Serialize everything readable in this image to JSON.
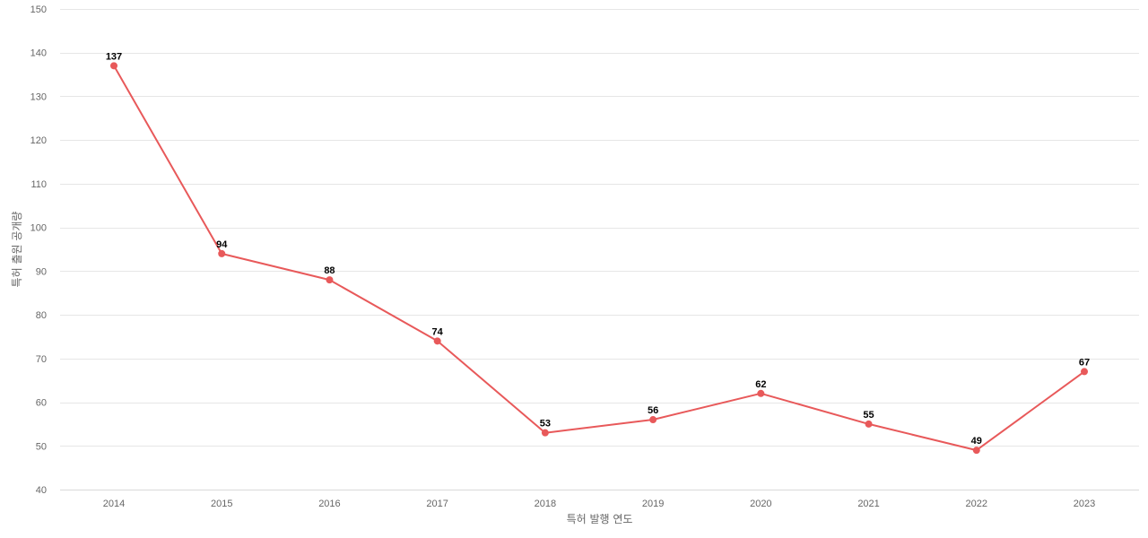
{
  "chart_data": {
    "type": "line",
    "title": "",
    "xlabel": "특허 발행 연도",
    "ylabel": "특허 출원 공개량",
    "categories": [
      "2014",
      "2015",
      "2016",
      "2017",
      "2018",
      "2019",
      "2020",
      "2021",
      "2022",
      "2023"
    ],
    "series": [
      {
        "values": [
          137,
          94,
          88,
          74,
          53,
          56,
          62,
          55,
          49,
          67
        ],
        "color": "#e8595a"
      }
    ],
    "ylim": [
      40,
      150
    ],
    "yticks": [
      40,
      50,
      60,
      70,
      80,
      90,
      100,
      110,
      120,
      130,
      140,
      150
    ],
    "grid": true,
    "legend": "none",
    "data_labels": true
  }
}
